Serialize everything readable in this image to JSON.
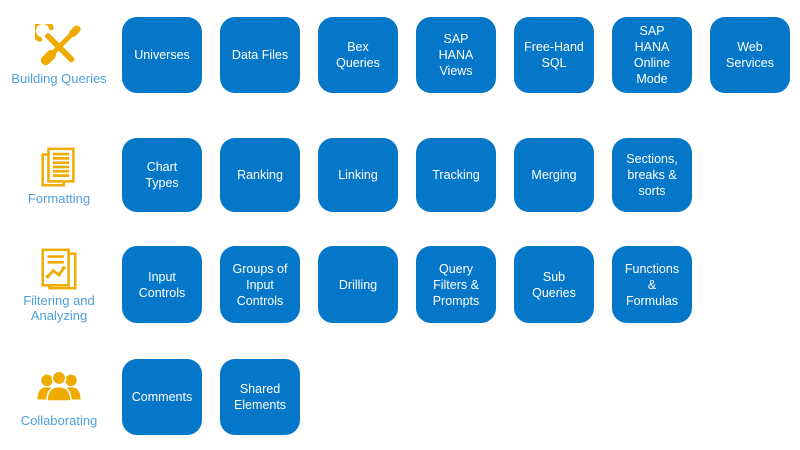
{
  "colors": {
    "tile_blue": "#0577C9",
    "category_label_blue": "#4EA0DC",
    "icon_gold": "#F0AB00",
    "tile_text": "#FFFFFF",
    "background": "#FFFFFF"
  },
  "categories": [
    {
      "label": "Building Queries",
      "icon": "tools-icon",
      "items": [
        "Universes",
        "Data Files",
        "Bex Queries",
        "SAP HANA Views",
        "Free-Hand SQL",
        "SAP HANA Online Mode",
        "Web Services"
      ]
    },
    {
      "label": "Formatting",
      "icon": "document-lines-icon",
      "items": [
        "Chart Types",
        "Ranking",
        "Linking",
        "Tracking",
        "Merging",
        "Sections, breaks & sorts"
      ]
    },
    {
      "label": "Filtering and Analyzing",
      "icon": "chart-report-icon",
      "items": [
        "Input Controls",
        "Groups of Input Controls",
        "Drilling",
        "Query Filters & Prompts",
        "Sub Queries",
        "Functions & Formulas"
      ]
    },
    {
      "label": "Collaborating",
      "icon": "people-icon",
      "items": [
        "Comments",
        "Shared Elements"
      ]
    }
  ]
}
